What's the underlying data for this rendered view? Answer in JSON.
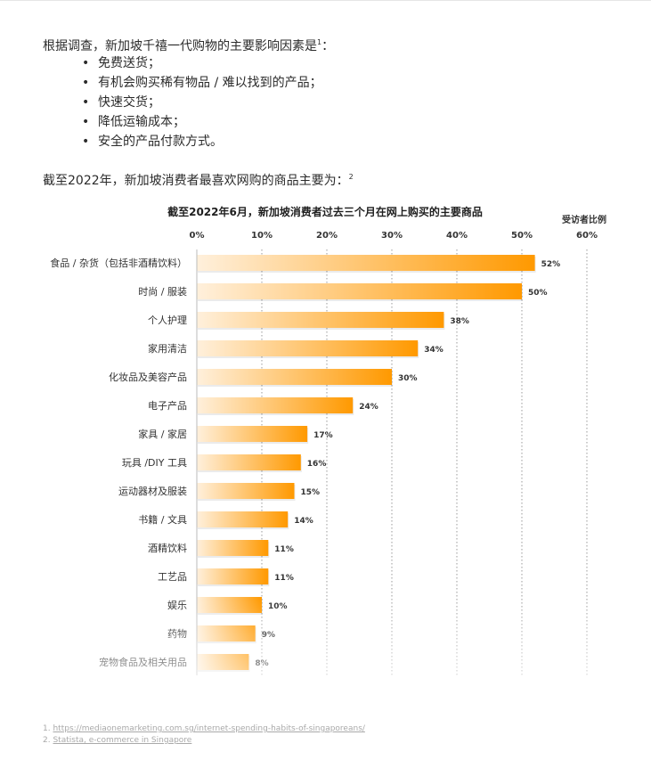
{
  "intro": {
    "text": "根据调查，新加坡千禧一代购物的主要影响因素是",
    "ref": "1",
    "colon": "：",
    "bullets": [
      "免费送货；",
      "有机会购买稀有物品 / 难以找到的产品；",
      "快速交货；",
      "降低运输成本；",
      "安全的产品付款方式。"
    ]
  },
  "lead": {
    "text": "截至2022年，新加坡消费者最喜欢网购的商品主要为：",
    "ref": "2"
  },
  "chart_data": {
    "type": "bar",
    "orientation": "horizontal",
    "title": "截至2022年6月，新加坡消费者过去三个月在网上购买的主要商品",
    "xlabel": "受访者比例",
    "xlim": [
      0,
      60
    ],
    "ticks": [
      "0%",
      "10%",
      "20%",
      "30%",
      "40%",
      "50%",
      "60%"
    ],
    "grid": true,
    "categories": [
      "食品 / 杂货（包括非酒精饮料）",
      "时尚 / 服装",
      "个人护理",
      "家用清洁",
      "化妆品及美容产品",
      "电子产品",
      "家具 / 家居",
      "玩具 /DIY 工具",
      "运动器材及服装",
      "书籍 / 文具",
      "酒精饮料",
      "工艺品",
      "娱乐",
      "药物",
      "宠物食品及相关用品"
    ],
    "values": [
      52,
      50,
      38,
      34,
      30,
      24,
      17,
      16,
      15,
      14,
      11,
      11,
      10,
      9,
      8
    ],
    "value_labels": [
      "52%",
      "50%",
      "38%",
      "34%",
      "30%",
      "24%",
      "17%",
      "16%",
      "15%",
      "14%",
      "11%",
      "11%",
      "10%",
      "9%",
      "8%"
    ],
    "colors": {
      "bar_start": "#fff0dc",
      "bar_end": "#ff9900"
    }
  },
  "footnotes": [
    {
      "num": "1.",
      "text": "https://mediaonemarketing.com.sg/internet-spending-habits-of-singaporeans/"
    },
    {
      "num": "2.",
      "text": "Statista, e-commerce in Singapore"
    }
  ]
}
